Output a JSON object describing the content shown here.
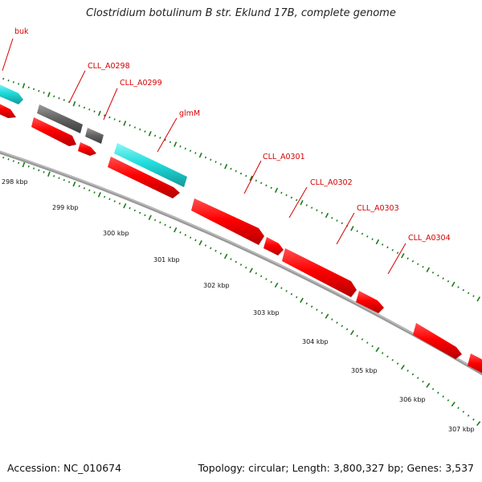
{
  "title": "Clostridium botulinum B str. Eklund 17B, complete genome",
  "footer": {
    "accession": "Accession: NC_010674",
    "summary": "Topology: circular; Length: 3,800,327 bp; Genes: 3,537"
  },
  "colors": {
    "backbone": "#8a8a8a",
    "cds": "#ff0000",
    "gene": "#666666",
    "trna": "#22dddd",
    "ticks": "#1a7a1a",
    "label": "#d40000"
  },
  "gene_labels": [
    {
      "name": "buk"
    },
    {
      "name": "CLL_A0298"
    },
    {
      "name": "CLL_A0299"
    },
    {
      "name": "glmM"
    },
    {
      "name": "CLL_A0301"
    },
    {
      "name": "CLL_A0302"
    },
    {
      "name": "CLL_A0303"
    },
    {
      "name": "CLL_A0304"
    }
  ],
  "ruler": [
    {
      "label": "298 kbp"
    },
    {
      "label": "299 kbp"
    },
    {
      "label": "300 kbp"
    },
    {
      "label": "301 kbp"
    },
    {
      "label": "302 kbp"
    },
    {
      "label": "303 kbp"
    },
    {
      "label": "304 kbp"
    },
    {
      "label": "305 kbp"
    },
    {
      "label": "306 kbp"
    },
    {
      "label": "307 kbp"
    }
  ]
}
